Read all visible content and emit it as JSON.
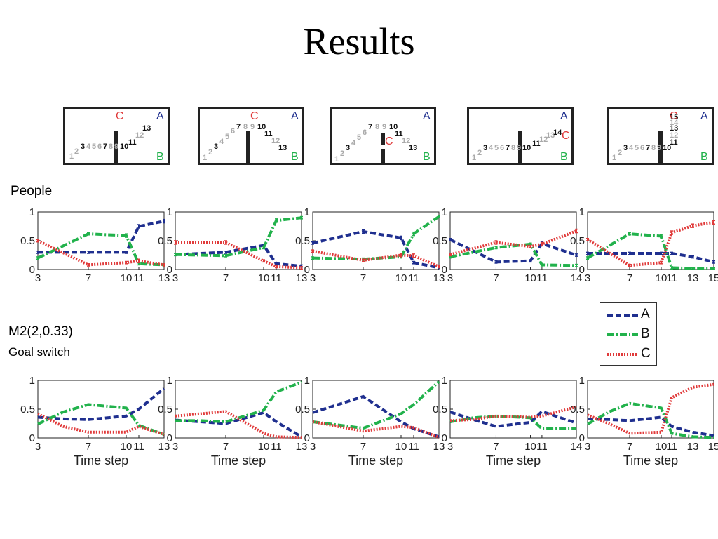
{
  "title": "Results",
  "row_labels": {
    "people": "People",
    "model": "M2(2,0.33)",
    "model_sub": "Goal switch"
  },
  "colors": {
    "A": "#1f2f8f",
    "B": "#22b24c",
    "C": "#e03a3a",
    "grey": "#aaaaaa"
  },
  "legend": [
    {
      "key": "A",
      "label": "A",
      "dash": "8 4"
    },
    {
      "key": "B",
      "label": "B",
      "dash": "10 3 2 3"
    },
    {
      "key": "C",
      "label": "C",
      "dash": "2 2"
    }
  ],
  "mazes": [
    {
      "goal_label_A": "A",
      "goal_label_B": "B",
      "goal_label_C": "C",
      "steps": [
        {
          "t": "1",
          "s": "grey"
        },
        {
          "t": "2",
          "s": "grey"
        },
        {
          "t": "3",
          "s": "black"
        },
        {
          "t": "4",
          "s": "grey"
        },
        {
          "t": "5",
          "s": "grey"
        },
        {
          "t": "6",
          "s": "grey"
        },
        {
          "t": "7",
          "s": "black"
        },
        {
          "t": "8",
          "s": "grey"
        },
        {
          "t": "9",
          "s": "grey"
        },
        {
          "t": "10",
          "s": "black"
        },
        {
          "t": "11",
          "s": "black"
        },
        {
          "t": "12",
          "s": "grey"
        },
        {
          "t": "13",
          "s": "black"
        }
      ]
    },
    {
      "goal_label_A": "A",
      "goal_label_B": "B",
      "goal_label_C": "C",
      "steps": [
        {
          "t": "1",
          "s": "grey"
        },
        {
          "t": "2",
          "s": "grey"
        },
        {
          "t": "3",
          "s": "black"
        },
        {
          "t": "4",
          "s": "grey"
        },
        {
          "t": "5",
          "s": "grey"
        },
        {
          "t": "6",
          "s": "grey"
        },
        {
          "t": "7",
          "s": "black"
        },
        {
          "t": "8",
          "s": "grey"
        },
        {
          "t": "9",
          "s": "grey"
        },
        {
          "t": "10",
          "s": "black"
        },
        {
          "t": "11",
          "s": "black"
        },
        {
          "t": "12",
          "s": "grey"
        },
        {
          "t": "13",
          "s": "black"
        }
      ]
    },
    {
      "goal_label_A": "A",
      "goal_label_B": "B",
      "goal_label_C": "C",
      "steps": [
        {
          "t": "1",
          "s": "grey"
        },
        {
          "t": "2",
          "s": "grey"
        },
        {
          "t": "3",
          "s": "black"
        },
        {
          "t": "4",
          "s": "grey"
        },
        {
          "t": "5",
          "s": "grey"
        },
        {
          "t": "6",
          "s": "grey"
        },
        {
          "t": "7",
          "s": "black"
        },
        {
          "t": "8",
          "s": "grey"
        },
        {
          "t": "9",
          "s": "grey"
        },
        {
          "t": "10",
          "s": "black"
        },
        {
          "t": "11",
          "s": "black"
        },
        {
          "t": "12",
          "s": "grey"
        },
        {
          "t": "13",
          "s": "black"
        }
      ]
    },
    {
      "goal_label_A": "A",
      "goal_label_B": "B",
      "goal_label_C": "C",
      "steps": [
        {
          "t": "1",
          "s": "grey"
        },
        {
          "t": "2",
          "s": "grey"
        },
        {
          "t": "3",
          "s": "black"
        },
        {
          "t": "4",
          "s": "grey"
        },
        {
          "t": "5",
          "s": "grey"
        },
        {
          "t": "6",
          "s": "grey"
        },
        {
          "t": "7",
          "s": "black"
        },
        {
          "t": "8",
          "s": "grey"
        },
        {
          "t": "9",
          "s": "grey"
        },
        {
          "t": "10",
          "s": "black"
        },
        {
          "t": "11",
          "s": "black"
        },
        {
          "t": "12",
          "s": "grey"
        },
        {
          "t": "13",
          "s": "grey"
        },
        {
          "t": "14",
          "s": "black"
        }
      ]
    },
    {
      "goal_label_A": "A",
      "goal_label_B": "B",
      "goal_label_C": "C",
      "steps": [
        {
          "t": "1",
          "s": "grey"
        },
        {
          "t": "2",
          "s": "grey"
        },
        {
          "t": "3",
          "s": "black"
        },
        {
          "t": "4",
          "s": "grey"
        },
        {
          "t": "5",
          "s": "grey"
        },
        {
          "t": "6",
          "s": "grey"
        },
        {
          "t": "7",
          "s": "black"
        },
        {
          "t": "8",
          "s": "grey"
        },
        {
          "t": "9",
          "s": "grey"
        },
        {
          "t": "10",
          "s": "black"
        },
        {
          "t": "11",
          "s": "black"
        },
        {
          "t": "12",
          "s": "grey"
        },
        {
          "t": "13",
          "s": "black"
        },
        {
          "t": "14",
          "s": "grey"
        },
        {
          "t": "15",
          "s": "black"
        }
      ]
    }
  ],
  "chart_data": [
    {
      "row": "People",
      "col": 0,
      "type": "line",
      "ylim": [
        0,
        1
      ],
      "yticks": [
        "0",
        "0.5",
        "1"
      ],
      "xlim": [
        3,
        13
      ],
      "xticks": [
        3,
        7,
        10,
        11,
        13
      ],
      "xlabel": "",
      "series": [
        {
          "name": "A",
          "x": [
            3,
            7,
            10,
            11,
            13
          ],
          "y": [
            0.3,
            0.3,
            0.3,
            0.75,
            0.84
          ],
          "err": [
            0.02,
            0.02,
            0.02,
            0.03,
            0.03
          ]
        },
        {
          "name": "B",
          "x": [
            3,
            7,
            10,
            11,
            13
          ],
          "y": [
            0.2,
            0.62,
            0.59,
            0.1,
            0.08
          ],
          "err": [
            0.02,
            0.02,
            0.03,
            0.02,
            0.02
          ]
        },
        {
          "name": "C",
          "x": [
            3,
            7,
            10,
            11,
            13
          ],
          "y": [
            0.5,
            0.08,
            0.12,
            0.15,
            0.08
          ],
          "err": [
            0.02,
            0.02,
            0.02,
            0.03,
            0.02
          ]
        }
      ]
    },
    {
      "row": "People",
      "col": 1,
      "type": "line",
      "ylim": [
        0,
        1
      ],
      "yticks": [
        "0",
        "0.5",
        "1"
      ],
      "xlim": [
        3,
        13
      ],
      "xticks": [
        3,
        7,
        10,
        11,
        13
      ],
      "xlabel": "",
      "series": [
        {
          "name": "A",
          "x": [
            3,
            7,
            10,
            11,
            13
          ],
          "y": [
            0.26,
            0.3,
            0.42,
            0.1,
            0.06
          ],
          "err": [
            0.02,
            0.02,
            0.02,
            0.02,
            0.02
          ]
        },
        {
          "name": "B",
          "x": [
            3,
            7,
            10,
            11,
            13
          ],
          "y": [
            0.26,
            0.24,
            0.38,
            0.85,
            0.9
          ],
          "err": [
            0.02,
            0.02,
            0.02,
            0.03,
            0.02
          ]
        },
        {
          "name": "C",
          "x": [
            3,
            7,
            10,
            11,
            13
          ],
          "y": [
            0.47,
            0.47,
            0.15,
            0.05,
            0.03
          ],
          "err": [
            0.03,
            0.03,
            0.02,
            0.02,
            0.02
          ]
        }
      ]
    },
    {
      "row": "People",
      "col": 2,
      "type": "line",
      "ylim": [
        0,
        1
      ],
      "yticks": [
        "0",
        "0.5",
        "1"
      ],
      "xlim": [
        3,
        13
      ],
      "xticks": [
        3,
        7,
        10,
        11,
        13
      ],
      "xlabel": "",
      "series": [
        {
          "name": "A",
          "x": [
            3,
            7,
            10,
            11,
            13
          ],
          "y": [
            0.46,
            0.66,
            0.55,
            0.12,
            0.03
          ],
          "err": [
            0.02,
            0.03,
            0.03,
            0.02,
            0.01
          ]
        },
        {
          "name": "B",
          "x": [
            3,
            7,
            10,
            11,
            13
          ],
          "y": [
            0.2,
            0.18,
            0.22,
            0.62,
            0.92
          ],
          "err": [
            0.02,
            0.02,
            0.02,
            0.03,
            0.02
          ]
        },
        {
          "name": "C",
          "x": [
            3,
            7,
            10,
            11,
            13
          ],
          "y": [
            0.32,
            0.16,
            0.25,
            0.24,
            0.05
          ],
          "err": [
            0.02,
            0.02,
            0.03,
            0.03,
            0.02
          ]
        }
      ]
    },
    {
      "row": "People",
      "col": 3,
      "type": "line",
      "ylim": [
        0,
        1
      ],
      "yticks": [
        "0",
        "0.5",
        "1"
      ],
      "xlim": [
        3,
        14
      ],
      "xticks": [
        3,
        7,
        10,
        11,
        14
      ],
      "xlabel": "",
      "series": [
        {
          "name": "A",
          "x": [
            3,
            7,
            10,
            11,
            14
          ],
          "y": [
            0.52,
            0.13,
            0.15,
            0.45,
            0.25
          ],
          "err": [
            0.02,
            0.02,
            0.02,
            0.03,
            0.02
          ]
        },
        {
          "name": "B",
          "x": [
            3,
            7,
            10,
            11,
            14
          ],
          "y": [
            0.22,
            0.38,
            0.44,
            0.08,
            0.07
          ],
          "err": [
            0.02,
            0.02,
            0.02,
            0.02,
            0.02
          ]
        },
        {
          "name": "C",
          "x": [
            3,
            7,
            10,
            11,
            14
          ],
          "y": [
            0.26,
            0.47,
            0.4,
            0.44,
            0.67
          ],
          "err": [
            0.02,
            0.03,
            0.02,
            0.03,
            0.03
          ]
        }
      ]
    },
    {
      "row": "People",
      "col": 4,
      "type": "line",
      "ylim": [
        0,
        1
      ],
      "yticks": [
        "0",
        "0.5",
        "1"
      ],
      "xlim": [
        3,
        15
      ],
      "xticks": [
        3,
        7,
        10,
        11,
        13,
        15
      ],
      "xlabel": "",
      "series": [
        {
          "name": "A",
          "x": [
            3,
            7,
            10,
            11,
            13,
            15
          ],
          "y": [
            0.28,
            0.28,
            0.28,
            0.28,
            0.22,
            0.13
          ],
          "err": [
            0.02,
            0.02,
            0.02,
            0.02,
            0.02,
            0.02
          ]
        },
        {
          "name": "B",
          "x": [
            3,
            7,
            10,
            11,
            13,
            15
          ],
          "y": [
            0.2,
            0.62,
            0.58,
            0.03,
            0.02,
            0.02
          ],
          "err": [
            0.02,
            0.02,
            0.03,
            0.02,
            0.01,
            0.01
          ]
        },
        {
          "name": "C",
          "x": [
            3,
            7,
            10,
            11,
            13,
            15
          ],
          "y": [
            0.52,
            0.07,
            0.12,
            0.64,
            0.76,
            0.82
          ],
          "err": [
            0.02,
            0.02,
            0.02,
            0.03,
            0.03,
            0.03
          ]
        }
      ]
    },
    {
      "row": "M2(2,0.33)",
      "col": 0,
      "type": "line",
      "ylim": [
        0,
        1
      ],
      "yticks": [
        "0",
        "0.5",
        "1"
      ],
      "xlim": [
        3,
        13
      ],
      "xticks": [
        3,
        7,
        10,
        11,
        13
      ],
      "xlabel": "Time step",
      "series": [
        {
          "name": "A",
          "x": [
            3,
            5,
            7,
            10,
            11,
            13
          ],
          "y": [
            0.36,
            0.33,
            0.32,
            0.38,
            0.5,
            0.86
          ]
        },
        {
          "name": "B",
          "x": [
            3,
            5,
            7,
            10,
            11,
            13
          ],
          "y": [
            0.24,
            0.45,
            0.58,
            0.52,
            0.22,
            0.06
          ]
        },
        {
          "name": "C",
          "x": [
            3,
            5,
            7,
            10,
            11,
            13
          ],
          "y": [
            0.42,
            0.2,
            0.1,
            0.1,
            0.2,
            0.06
          ]
        }
      ]
    },
    {
      "row": "M2(2,0.33)",
      "col": 1,
      "type": "line",
      "ylim": [
        0,
        1
      ],
      "yticks": [
        "0",
        "0.5",
        "1"
      ],
      "xlim": [
        3,
        13
      ],
      "xticks": [
        3,
        7,
        10,
        11,
        13
      ],
      "xlabel": "Time step",
      "series": [
        {
          "name": "A",
          "x": [
            3,
            5,
            7,
            10,
            11,
            13
          ],
          "y": [
            0.31,
            0.28,
            0.25,
            0.44,
            0.28,
            0.02
          ]
        },
        {
          "name": "B",
          "x": [
            3,
            5,
            7,
            10,
            11,
            13
          ],
          "y": [
            0.3,
            0.3,
            0.28,
            0.48,
            0.8,
            0.97
          ]
        },
        {
          "name": "C",
          "x": [
            3,
            5,
            7,
            10,
            11,
            13
          ],
          "y": [
            0.38,
            0.42,
            0.46,
            0.08,
            0.02,
            0.01
          ]
        }
      ]
    },
    {
      "row": "M2(2,0.33)",
      "col": 2,
      "type": "line",
      "ylim": [
        0,
        1
      ],
      "yticks": [
        "0",
        "0.5",
        "1"
      ],
      "xlim": [
        3,
        13
      ],
      "xticks": [
        3,
        7,
        10,
        11,
        13
      ],
      "xlabel": "Time step",
      "series": [
        {
          "name": "A",
          "x": [
            3,
            7,
            10,
            11,
            13
          ],
          "y": [
            0.44,
            0.72,
            0.28,
            0.16,
            0.02
          ]
        },
        {
          "name": "B",
          "x": [
            3,
            7,
            10,
            11,
            13
          ],
          "y": [
            0.28,
            0.17,
            0.42,
            0.58,
            0.98
          ]
        },
        {
          "name": "C",
          "x": [
            3,
            7,
            10,
            11,
            13
          ],
          "y": [
            0.28,
            0.12,
            0.2,
            0.18,
            0.01
          ]
        }
      ]
    },
    {
      "row": "M2(2,0.33)",
      "col": 3,
      "type": "line",
      "ylim": [
        0,
        1
      ],
      "yticks": [
        "0",
        "0.5",
        "1"
      ],
      "xlim": [
        3,
        14
      ],
      "xticks": [
        3,
        7,
        10,
        11,
        14
      ],
      "xlabel": "Time step",
      "series": [
        {
          "name": "A",
          "x": [
            3,
            5,
            7,
            10,
            11,
            14
          ],
          "y": [
            0.45,
            0.32,
            0.2,
            0.27,
            0.46,
            0.26
          ]
        },
        {
          "name": "B",
          "x": [
            3,
            5,
            7,
            10,
            11,
            14
          ],
          "y": [
            0.28,
            0.35,
            0.38,
            0.35,
            0.16,
            0.17
          ]
        },
        {
          "name": "C",
          "x": [
            3,
            5,
            7,
            10,
            11,
            14
          ],
          "y": [
            0.3,
            0.32,
            0.38,
            0.36,
            0.38,
            0.54
          ]
        }
      ]
    },
    {
      "row": "M2(2,0.33)",
      "col": 4,
      "type": "line",
      "ylim": [
        0,
        1
      ],
      "yticks": [
        "0",
        "0.5",
        "1"
      ],
      "xlim": [
        3,
        15
      ],
      "xticks": [
        3,
        7,
        10,
        11,
        13,
        15
      ],
      "xlabel": "Time step",
      "series": [
        {
          "name": "A",
          "x": [
            3,
            5,
            7,
            10,
            11,
            13,
            15
          ],
          "y": [
            0.33,
            0.32,
            0.3,
            0.36,
            0.2,
            0.1,
            0.04
          ]
        },
        {
          "name": "B",
          "x": [
            3,
            5,
            7,
            10,
            11,
            13,
            15
          ],
          "y": [
            0.24,
            0.45,
            0.6,
            0.52,
            0.08,
            0.02,
            0.01
          ]
        },
        {
          "name": "C",
          "x": [
            3,
            5,
            7,
            10,
            11,
            13,
            15
          ],
          "y": [
            0.4,
            0.25,
            0.08,
            0.1,
            0.7,
            0.88,
            0.93
          ]
        }
      ]
    }
  ]
}
